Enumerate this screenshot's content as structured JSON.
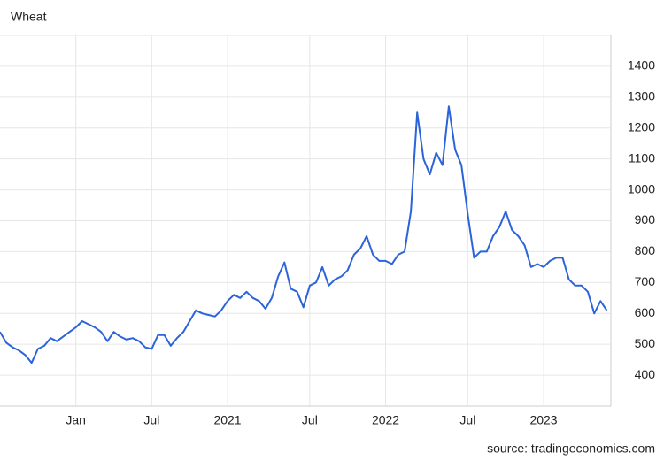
{
  "chart_data": {
    "type": "line",
    "title": "Wheat",
    "source": "source: tradingeconomics.com",
    "categories": [
      null,
      null,
      null,
      null,
      null,
      null,
      null,
      null,
      null,
      null,
      null,
      null,
      "Jan",
      null,
      null,
      null,
      null,
      null,
      null,
      null,
      null,
      null,
      null,
      null,
      "Jul",
      null,
      null,
      null,
      null,
      null,
      null,
      null,
      null,
      null,
      null,
      null,
      "2021",
      null,
      null,
      null,
      null,
      null,
      null,
      null,
      null,
      null,
      null,
      null,
      null,
      "Jul",
      null,
      null,
      null,
      null,
      null,
      null,
      null,
      null,
      null,
      null,
      null,
      "2022",
      null,
      null,
      null,
      null,
      null,
      null,
      null,
      null,
      null,
      null,
      null,
      null,
      "Jul",
      null,
      null,
      null,
      null,
      null,
      null,
      null,
      null,
      null,
      null,
      null,
      "2023",
      null,
      null,
      null,
      null,
      null,
      null,
      null,
      null,
      null,
      null
    ],
    "series": [
      {
        "name": "Wheat",
        "color": "#2b63d9",
        "values": [
          540,
          505,
          490,
          480,
          465,
          440,
          485,
          495,
          520,
          510,
          525,
          540,
          555,
          575,
          565,
          555,
          540,
          510,
          540,
          525,
          515,
          520,
          510,
          490,
          485,
          530,
          530,
          495,
          520,
          540,
          575,
          610,
          600,
          595,
          590,
          610,
          640,
          660,
          650,
          670,
          650,
          640,
          615,
          650,
          720,
          765,
          680,
          670,
          620,
          690,
          700,
          750,
          690,
          710,
          720,
          740,
          790,
          810,
          850,
          790,
          770,
          770,
          760,
          790,
          800,
          930,
          1250,
          1100,
          1050,
          1120,
          1080,
          1270,
          1130,
          1080,
          920,
          780,
          800,
          800,
          850,
          880,
          930,
          870,
          850,
          820,
          750,
          760,
          750,
          770,
          780,
          780,
          710,
          690,
          690,
          670,
          600,
          640,
          610
        ]
      }
    ],
    "ylim": [
      300,
      1500
    ],
    "yticks": [
      400,
      500,
      600,
      700,
      800,
      900,
      1000,
      1100,
      1200,
      1300,
      1400
    ],
    "grid": true
  }
}
